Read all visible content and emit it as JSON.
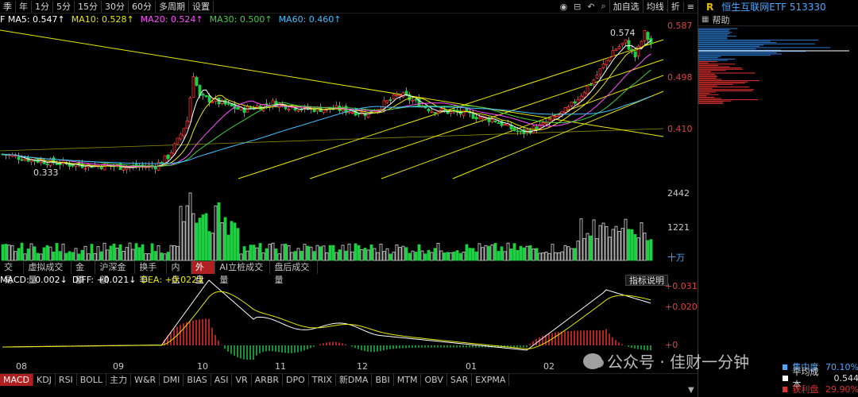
{
  "toolbar": {
    "periods": [
      "季",
      "年",
      "1分",
      "5分",
      "15分",
      "30分",
      "60分",
      "多周期",
      "设置"
    ],
    "icons": [
      "eye-icon",
      "ruler-icon",
      "undo-icon",
      "search-icon"
    ],
    "add_watch": "加自选",
    "avg_line": "均线",
    "fold": "折",
    "menu": "≡"
  },
  "ma_legend": [
    {
      "label": "F MA5: 0.547↑",
      "color": "#ffffff"
    },
    {
      "label": "MA10: 0.528↑",
      "color": "#e8e800"
    },
    {
      "label": "MA20: 0.524↑",
      "color": "#ff50ff"
    },
    {
      "label": "MA30: 0.500↑",
      "color": "#40d040"
    },
    {
      "label": "MA60: 0.460↑",
      "color": "#40c0ff"
    }
  ],
  "price_axis": [
    "0.587",
    "0.498",
    "0.410"
  ],
  "annotations": {
    "high": "0.574",
    "low": "0.333"
  },
  "volume_axis": [
    "2442",
    "1221",
    "十万"
  ],
  "volume_tabs": [
    "交易",
    "虚拟成交量",
    "金额",
    "沪深金额",
    "换手率",
    "内盘",
    "外盘",
    "AI立桩成交量",
    "盘后成交量"
  ],
  "volume_tab_active": "外盘",
  "macd_legend": [
    {
      "label": "MACD: -0.002↓",
      "color": "#ffffff"
    },
    {
      "label": "DIFF: +0.021↓",
      "color": "#ffffff"
    },
    {
      "label": "DEA: +0.022↓",
      "color": "#e8e800"
    }
  ],
  "indicator_help": "指标说明",
  "macd_axis": [
    "+0.031",
    "+0.020",
    "+0"
  ],
  "months": [
    "08",
    "09",
    "10",
    "11",
    "12",
    "01",
    "02"
  ],
  "indicator_tabs": [
    "MACD",
    "KDJ",
    "RSI",
    "BOLL",
    "主力",
    "W&R",
    "DMI",
    "BIAS",
    "ASI",
    "VR",
    "ARBR",
    "DPO",
    "TRIX",
    "新DMA",
    "BBI",
    "MTM",
    "OBV",
    "SAR",
    "EXPMA"
  ],
  "indicator_active": "MACD",
  "right_panel": {
    "r_badge": "R",
    "title": "恒生互联网ETF 513330",
    "help": "帮助",
    "stats": [
      {
        "label": "集中度",
        "value": "70.10%",
        "color": "#4aa8ff"
      },
      {
        "label": "平均成本",
        "value": "0.544",
        "color": "#ffffff"
      },
      {
        "label": "获利盘",
        "value": "29.90%",
        "color": "#e03030"
      }
    ]
  },
  "watermark": "公众号 · 佳财一分钟",
  "colors": {
    "up": "#ff3333",
    "down": "#22cc44",
    "axis_red": "#e04040",
    "accent": "#b02020"
  }
}
